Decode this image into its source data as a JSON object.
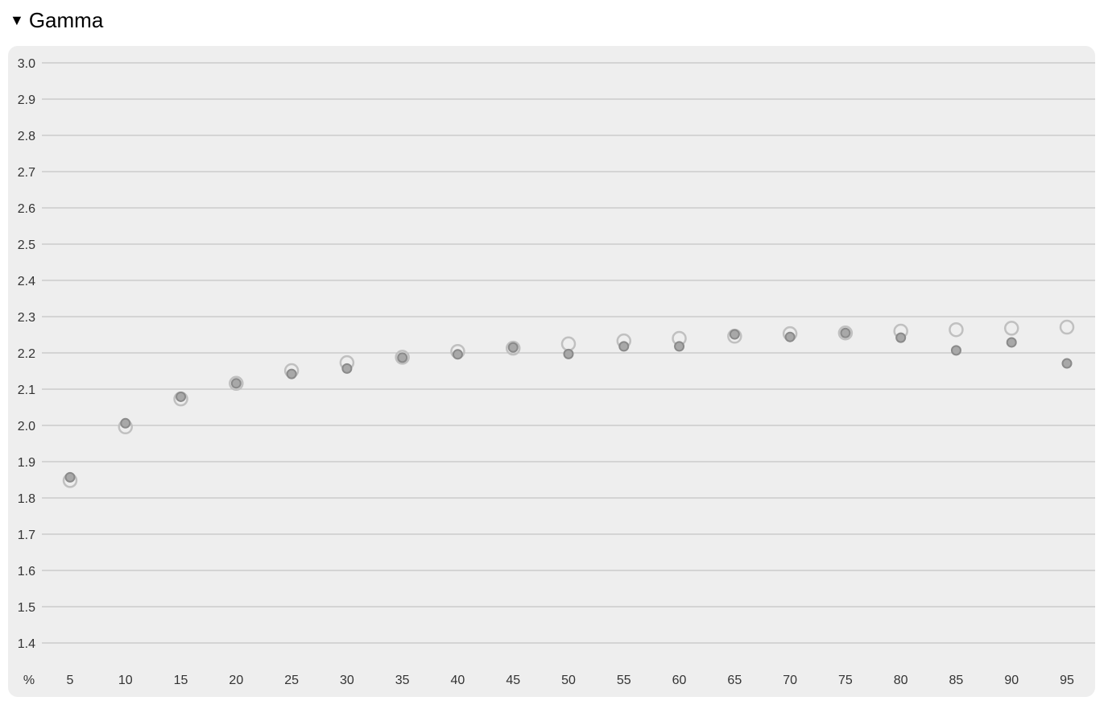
{
  "section": {
    "title": "Gamma",
    "toggle_icon": "triangle-down-icon",
    "expanded": true
  },
  "chart_data": {
    "type": "scatter",
    "title": "",
    "xlabel": "%",
    "ylabel": "",
    "x": [
      5,
      10,
      15,
      20,
      25,
      30,
      35,
      40,
      45,
      50,
      55,
      60,
      65,
      70,
      75,
      80,
      85,
      90,
      95
    ],
    "x_tick_labels": [
      "5",
      "10",
      "15",
      "20",
      "25",
      "30",
      "35",
      "40",
      "45",
      "50",
      "55",
      "60",
      "65",
      "70",
      "75",
      "80",
      "85",
      "90",
      "95"
    ],
    "y_tick_labels": [
      "3.0",
      "2.9",
      "2.8",
      "2.7",
      "2.6",
      "2.5",
      "2.4",
      "2.3",
      "2.2",
      "2.1",
      "2.0",
      "1.9",
      "1.8",
      "1.7",
      "1.6",
      "1.5",
      "1.4"
    ],
    "ylim": [
      1.4,
      3.0
    ],
    "grid": true,
    "series": [
      {
        "marker": "open-circle",
        "color": "#c0c0c0",
        "values": [
          1.848,
          1.996,
          2.073,
          2.116,
          2.151,
          2.173,
          2.188,
          2.204,
          2.213,
          2.225,
          2.233,
          2.24,
          2.246,
          2.253,
          2.255,
          2.26,
          2.264,
          2.268,
          2.271
        ]
      },
      {
        "marker": "filled-circle",
        "color": "#a8a8a8",
        "stroke": "#8a8a8a",
        "values": [
          1.857,
          2.006,
          2.079,
          2.116,
          2.142,
          2.157,
          2.187,
          2.196,
          2.215,
          2.197,
          2.218,
          2.218,
          2.251,
          2.244,
          2.255,
          2.242,
          2.207,
          2.229,
          2.171
        ]
      }
    ]
  }
}
